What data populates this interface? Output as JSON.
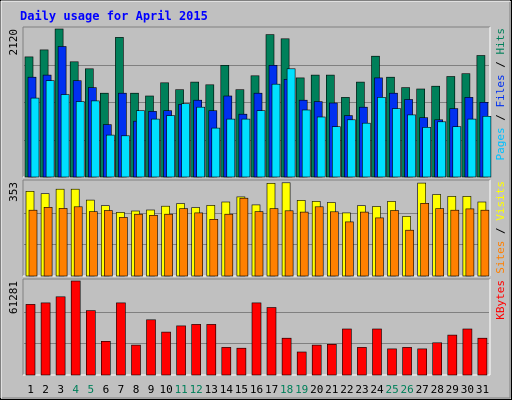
{
  "chart_data": {
    "type": "bar",
    "title": "Daily usage for April 2015",
    "categories": [
      "1",
      "2",
      "3",
      "4",
      "5",
      "6",
      "7",
      "8",
      "9",
      "10",
      "11",
      "12",
      "13",
      "14",
      "15",
      "16",
      "17",
      "18",
      "19",
      "20",
      "21",
      "22",
      "23",
      "24",
      "25",
      "26",
      "27",
      "28",
      "29",
      "30",
      "31"
    ],
    "weekend_days": [
      4,
      5,
      11,
      12,
      18,
      19,
      25,
      26
    ],
    "colors": {
      "hits": "#00805a",
      "files": "#0030f0",
      "pages": "#00e0ff",
      "visits": "#ffff00",
      "sites": "#ff8000",
      "kbytes": "#ff0000",
      "background": "#c0c0c0",
      "title": "#0000ff",
      "weekend_label": "#00805a",
      "weekday_label": "#000000"
    },
    "panels": {
      "top": {
        "max_label": "2120",
        "ylim": [
          0,
          2120
        ],
        "right_labels": [
          {
            "text": "Pages",
            "color": "#00c0ff"
          },
          {
            "text": " / ",
            "color": "#000000"
          },
          {
            "text": "Files",
            "color": "#0030f0"
          },
          {
            "text": " / ",
            "color": "#000000"
          },
          {
            "text": "Hits",
            "color": "#00805a"
          }
        ],
        "series": [
          {
            "name": "Hits",
            "values": [
              1720,
              1820,
              2120,
              1650,
              1550,
              1200,
              2000,
              1200,
              1160,
              1350,
              1250,
              1360,
              1320,
              1600,
              1250,
              1450,
              2040,
              1980,
              1420,
              1460,
              1460,
              1140,
              1360,
              1730,
              1430,
              1280,
              1260,
              1300,
              1440,
              1480,
              1740
            ]
          },
          {
            "name": "Files",
            "values": [
              1430,
              1460,
              1870,
              1380,
              1280,
              750,
              1200,
              800,
              940,
              950,
              1040,
              1100,
              950,
              1160,
              900,
              1200,
              1600,
              1400,
              1100,
              1080,
              1060,
              880,
              1000,
              1420,
              1200,
              1110,
              850,
              820,
              980,
              1140,
              1070
            ]
          },
          {
            "name": "Pages",
            "values": [
              1130,
              1380,
              1180,
              1080,
              1090,
              600,
              590,
              950,
              830,
              880,
              1050,
              1000,
              700,
              830,
              830,
              950,
              1330,
              1550,
              960,
              860,
              720,
              820,
              770,
              1140,
              980,
              890,
              710,
              790,
              720,
              830,
              870
            ]
          }
        ]
      },
      "middle": {
        "max_label": "353",
        "ylim": [
          0,
          353
        ],
        "right_labels": [
          {
            "text": "Sites",
            "color": "#ff8000"
          },
          {
            "text": " / ",
            "color": "#000000"
          },
          {
            "text": "Visits",
            "color": "#ffff00"
          }
        ],
        "series": [
          {
            "name": "Visits",
            "values": [
              318,
              309,
              326,
              326,
              285,
              264,
              239,
              244,
              248,
              262,
              272,
              257,
              265,
              278,
              297,
              267,
              348,
              350,
              284,
              280,
              276,
              237,
              264,
              261,
              280,
              224,
              349,
              306,
              299,
              299,
              278
            ]
          },
          {
            "name": "Sites",
            "values": [
              247,
              258,
              254,
              260,
              242,
              246,
              220,
              232,
              228,
              232,
              253,
              237,
              213,
              232,
              292,
              242,
              253,
              245,
              240,
              260,
              241,
              203,
              240,
              218,
              246,
              172,
              273,
              253,
              247,
              252,
              247
            ]
          }
        ]
      },
      "bottom": {
        "max_label": "61281",
        "ylim": [
          0,
          61281
        ],
        "right_labels": [
          {
            "text": "KBytes",
            "color": "#ff0000"
          }
        ],
        "series": [
          {
            "name": "KBytes",
            "values": [
              46000,
              47000,
              51000,
              61281,
              42000,
              22000,
              47000,
              19500,
              36000,
              28000,
              32000,
              33000,
              33000,
              18000,
              17500,
              47000,
              44000,
              24000,
              15000,
              19500,
              20000,
              30000,
              18000,
              30000,
              17000,
              18000,
              17000,
              21000,
              26000,
              30000,
              24000
            ]
          }
        ]
      }
    }
  }
}
